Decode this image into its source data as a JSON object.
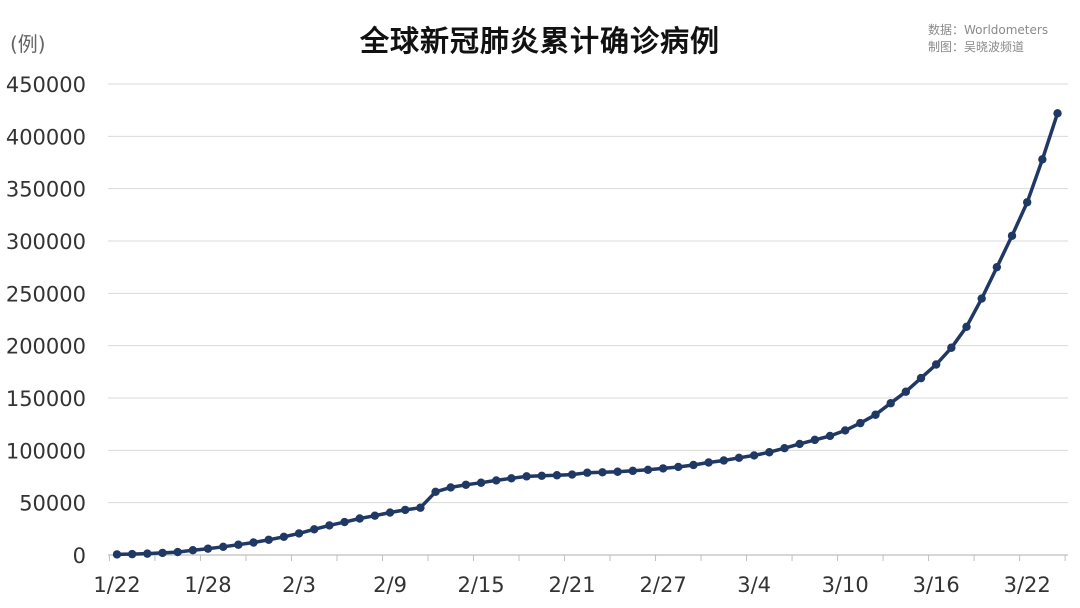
{
  "title": "全球新冠肺炎累计确诊病例",
  "unit_label": "(例)",
  "source": "数据：Worldometers",
  "author": "制图：吴晓波频道",
  "colors": {
    "line": "#1f3864",
    "grid": "#d9d9d9",
    "axis": "#bfbfbf"
  },
  "chart_data": {
    "type": "line",
    "title": "全球新冠肺炎累计确诊病例",
    "ylabel": "(例)",
    "ylim": [
      0,
      450000
    ],
    "yticks": [
      "0",
      "50000",
      "100000",
      "150000",
      "200000",
      "250000",
      "300000",
      "350000",
      "400000",
      "450000"
    ],
    "xticks": [
      "1/22",
      "1/28",
      "2/3",
      "2/9",
      "2/15",
      "2/21",
      "2/27",
      "3/4",
      "3/10",
      "3/16",
      "3/22"
    ],
    "grid": true,
    "x": [
      "1/22",
      "1/23",
      "1/24",
      "1/25",
      "1/26",
      "1/27",
      "1/28",
      "1/29",
      "1/30",
      "1/31",
      "2/1",
      "2/2",
      "2/3",
      "2/4",
      "2/5",
      "2/6",
      "2/7",
      "2/8",
      "2/9",
      "2/10",
      "2/11",
      "2/12",
      "2/13",
      "2/14",
      "2/15",
      "2/16",
      "2/17",
      "2/18",
      "2/19",
      "2/20",
      "2/21",
      "2/22",
      "2/23",
      "2/24",
      "2/25",
      "2/26",
      "2/27",
      "2/28",
      "2/29",
      "3/1",
      "3/2",
      "3/3",
      "3/4",
      "3/5",
      "3/6",
      "3/7",
      "3/8",
      "3/9",
      "3/10",
      "3/11",
      "3/12",
      "3/13",
      "3/14",
      "3/15",
      "3/16",
      "3/17",
      "3/18",
      "3/19",
      "3/20",
      "3/21",
      "3/22",
      "3/23",
      "3/24"
    ],
    "series": [
      {
        "values": [
          580,
          845,
          1320,
          2015,
          2800,
          4580,
          6060,
          7820,
          9820,
          11950,
          14550,
          17390,
          20630,
          24550,
          28280,
          31480,
          34880,
          37560,
          40560,
          43100,
          45170,
          60380,
          64550,
          67100,
          69040,
          71230,
          73260,
          75140,
          75640,
          76200,
          76840,
          78600,
          78990,
          79550,
          80400,
          81390,
          82750,
          84120,
          86010,
          88370,
          90310,
          92830,
          95120,
          98180,
          102050,
          106130,
          109990,
          113730,
          119000,
          126000,
          134000,
          145000,
          156000,
          169000,
          182000,
          198000,
          218000,
          245000,
          275000,
          305000,
          337000,
          378000,
          422000
        ]
      }
    ]
  }
}
